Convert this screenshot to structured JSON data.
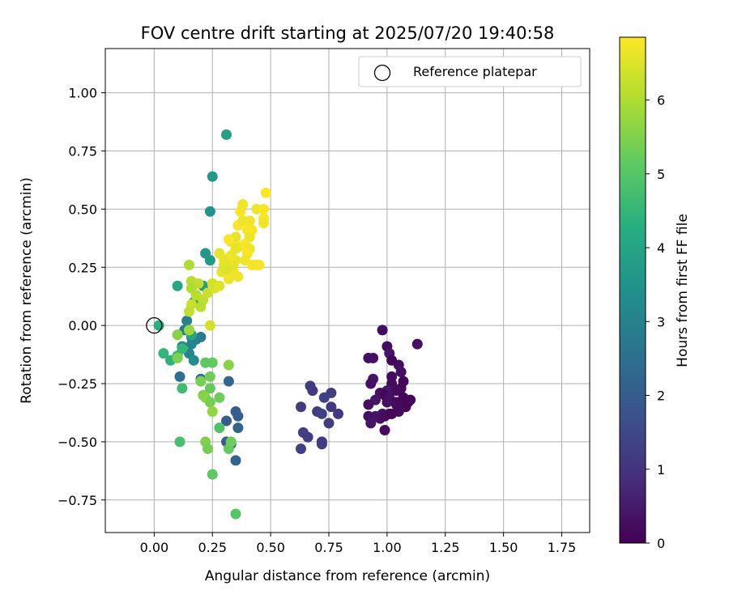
{
  "chart_data": {
    "type": "scatter",
    "title": "FOV centre drift starting at 2025/07/20 19:40:58",
    "xlabel": "Angular distance from reference (arcmin)",
    "ylabel": "Rotation from reference (arcmin)",
    "xlim": [
      -0.21,
      1.87
    ],
    "ylim": [
      -0.89,
      1.19
    ],
    "xticks": [
      0.0,
      0.25,
      0.5,
      0.75,
      1.0,
      1.25,
      1.5,
      1.75
    ],
    "xtick_labels": [
      "0.00",
      "0.25",
      "0.50",
      "0.75",
      "1.00",
      "1.25",
      "1.50",
      "1.75"
    ],
    "yticks": [
      -0.75,
      -0.5,
      -0.25,
      0.0,
      0.25,
      0.5,
      0.75,
      1.0
    ],
    "ytick_labels": [
      "−0.75",
      "−0.50",
      "−0.25",
      "0.00",
      "0.25",
      "0.50",
      "0.75",
      "1.00"
    ],
    "grid": true,
    "legend": {
      "location": "top-right",
      "entries": [
        "Reference platepar"
      ]
    },
    "reference_point": {
      "x": 0.0,
      "y": 0.0,
      "label": "Reference platepar"
    },
    "colorbar": {
      "label": "Hours from first FF file",
      "colormap": "viridis",
      "range": [
        0,
        6.85
      ],
      "ticks": [
        0,
        1,
        2,
        3,
        4,
        5,
        6
      ],
      "tick_labels": [
        "0",
        "1",
        "2",
        "3",
        "4",
        "5",
        "6"
      ]
    },
    "points": [
      {
        "x": 0.98,
        "y": -0.02,
        "c": 0.2
      },
      {
        "x": 1.13,
        "y": -0.08,
        "c": 0.3
      },
      {
        "x": 1.0,
        "y": -0.09,
        "c": 0.2
      },
      {
        "x": 0.94,
        "y": -0.14,
        "c": 0.3
      },
      {
        "x": 1.01,
        "y": -0.12,
        "c": 0.4
      },
      {
        "x": 1.05,
        "y": -0.17,
        "c": 0.2
      },
      {
        "x": 0.92,
        "y": -0.14,
        "c": 0.3
      },
      {
        "x": 1.02,
        "y": -0.15,
        "c": 0.1
      },
      {
        "x": 1.06,
        "y": -0.2,
        "c": 0.3
      },
      {
        "x": 1.02,
        "y": -0.22,
        "c": 0.2
      },
      {
        "x": 0.94,
        "y": -0.23,
        "c": 0.4
      },
      {
        "x": 1.07,
        "y": -0.24,
        "c": 0.1
      },
      {
        "x": 0.93,
        "y": -0.25,
        "c": 0.3
      },
      {
        "x": 1.02,
        "y": -0.25,
        "c": 0.2
      },
      {
        "x": 1.06,
        "y": -0.27,
        "c": 0.1
      },
      {
        "x": 1.0,
        "y": -0.28,
        "c": 0.4
      },
      {
        "x": 1.04,
        "y": -0.28,
        "c": 0.2
      },
      {
        "x": 0.97,
        "y": -0.29,
        "c": 0.3
      },
      {
        "x": 0.99,
        "y": -0.3,
        "c": 0.1
      },
      {
        "x": 1.01,
        "y": -0.31,
        "c": 0.3
      },
      {
        "x": 1.07,
        "y": -0.31,
        "c": 0.1
      },
      {
        "x": 1.1,
        "y": -0.32,
        "c": 0.1
      },
      {
        "x": 0.95,
        "y": -0.32,
        "c": 0.4
      },
      {
        "x": 1.04,
        "y": -0.33,
        "c": 0.2
      },
      {
        "x": 1.06,
        "y": -0.33,
        "c": 0.1
      },
      {
        "x": 1.09,
        "y": -0.33,
        "c": 0.1
      },
      {
        "x": 1.0,
        "y": -0.33,
        "c": 0.3
      },
      {
        "x": 0.92,
        "y": -0.34,
        "c": 0.3
      },
      {
        "x": 1.04,
        "y": -0.34,
        "c": 0.2
      },
      {
        "x": 1.08,
        "y": -0.35,
        "c": 0.1
      },
      {
        "x": 1.05,
        "y": -0.37,
        "c": 0.2
      },
      {
        "x": 0.98,
        "y": -0.38,
        "c": 0.3
      },
      {
        "x": 1.01,
        "y": -0.38,
        "c": 0.2
      },
      {
        "x": 0.95,
        "y": -0.39,
        "c": 0.4
      },
      {
        "x": 0.97,
        "y": -0.4,
        "c": 0.3
      },
      {
        "x": 0.93,
        "y": -0.4,
        "c": 0.4
      },
      {
        "x": 0.92,
        "y": -0.39,
        "c": 0.3
      },
      {
        "x": 0.99,
        "y": -0.39,
        "c": 0.2
      },
      {
        "x": 0.93,
        "y": -0.42,
        "c": 0.4
      },
      {
        "x": 0.99,
        "y": -0.45,
        "c": 0.2
      },
      {
        "x": 1.02,
        "y": -0.38,
        "c": 0.1
      },
      {
        "x": 0.67,
        "y": -0.26,
        "c": 1.2
      },
      {
        "x": 0.68,
        "y": -0.28,
        "c": 1.1
      },
      {
        "x": 0.76,
        "y": -0.29,
        "c": 1.2
      },
      {
        "x": 0.73,
        "y": -0.31,
        "c": 1.3
      },
      {
        "x": 0.63,
        "y": -0.35,
        "c": 1.2
      },
      {
        "x": 0.76,
        "y": -0.35,
        "c": 1.1
      },
      {
        "x": 0.7,
        "y": -0.37,
        "c": 1.2
      },
      {
        "x": 0.72,
        "y": -0.38,
        "c": 1.3
      },
      {
        "x": 0.79,
        "y": -0.38,
        "c": 1.1
      },
      {
        "x": 0.75,
        "y": -0.42,
        "c": 1.2
      },
      {
        "x": 0.64,
        "y": -0.46,
        "c": 1.3
      },
      {
        "x": 0.66,
        "y": -0.48,
        "c": 1.2
      },
      {
        "x": 0.72,
        "y": -0.5,
        "c": 1.1
      },
      {
        "x": 0.72,
        "y": -0.51,
        "c": 1.2
      },
      {
        "x": 0.63,
        "y": -0.53,
        "c": 1.3
      },
      {
        "x": 0.35,
        "y": -0.37,
        "c": 2.0
      },
      {
        "x": 0.36,
        "y": -0.39,
        "c": 2.1
      },
      {
        "x": 0.31,
        "y": -0.41,
        "c": 2.0
      },
      {
        "x": 0.36,
        "y": -0.44,
        "c": 2.2
      },
      {
        "x": 0.31,
        "y": -0.5,
        "c": 2.1
      },
      {
        "x": 0.33,
        "y": -0.51,
        "c": 2.0
      },
      {
        "x": 0.35,
        "y": -0.58,
        "c": 2.2
      },
      {
        "x": 0.32,
        "y": -0.24,
        "c": 2.3
      },
      {
        "x": 0.11,
        "y": -0.22,
        "c": 2.5
      },
      {
        "x": 0.2,
        "y": -0.23,
        "c": 2.6
      },
      {
        "x": 0.2,
        "y": -0.05,
        "c": 2.8
      },
      {
        "x": 0.15,
        "y": -0.02,
        "c": 2.9
      },
      {
        "x": 0.14,
        "y": 0.02,
        "c": 3.0
      },
      {
        "x": 0.16,
        "y": -0.05,
        "c": 2.9
      },
      {
        "x": 0.16,
        "y": -0.08,
        "c": 3.1
      },
      {
        "x": 0.18,
        "y": -0.06,
        "c": 3.0
      },
      {
        "x": 0.12,
        "y": -0.09,
        "c": 3.2
      },
      {
        "x": 0.15,
        "y": -0.12,
        "c": 3.1
      },
      {
        "x": 0.17,
        "y": -0.15,
        "c": 3.3
      },
      {
        "x": 0.13,
        "y": -0.02,
        "c": 2.9
      },
      {
        "x": 0.31,
        "y": 0.82,
        "c": 3.8
      },
      {
        "x": 0.25,
        "y": 0.64,
        "c": 3.7
      },
      {
        "x": 0.24,
        "y": 0.49,
        "c": 3.5
      },
      {
        "x": 0.22,
        "y": 0.31,
        "c": 3.6
      },
      {
        "x": 0.24,
        "y": 0.28,
        "c": 3.7
      },
      {
        "x": 0.21,
        "y": 0.17,
        "c": 3.8
      },
      {
        "x": 0.18,
        "y": 0.13,
        "c": 3.9
      },
      {
        "x": 0.17,
        "y": 0.1,
        "c": 4.0
      },
      {
        "x": 0.1,
        "y": 0.17,
        "c": 4.1
      },
      {
        "x": 0.16,
        "y": -0.04,
        "c": 4.0
      },
      {
        "x": 0.02,
        "y": 0.0,
        "c": 4.3
      },
      {
        "x": 0.04,
        "y": -0.12,
        "c": 4.5
      },
      {
        "x": 0.07,
        "y": -0.15,
        "c": 4.4
      },
      {
        "x": 0.1,
        "y": -0.13,
        "c": 4.6
      },
      {
        "x": 0.12,
        "y": -0.1,
        "c": 4.5
      },
      {
        "x": 0.12,
        "y": -0.27,
        "c": 4.7
      },
      {
        "x": 0.11,
        "y": -0.5,
        "c": 4.8
      },
      {
        "x": 0.35,
        "y": -0.81,
        "c": 5.0
      },
      {
        "x": 0.25,
        "y": -0.64,
        "c": 5.1
      },
      {
        "x": 0.28,
        "y": -0.44,
        "c": 4.9
      },
      {
        "x": 0.32,
        "y": -0.53,
        "c": 5.2
      },
      {
        "x": 0.33,
        "y": -0.5,
        "c": 5.3
      },
      {
        "x": 0.22,
        "y": -0.5,
        "c": 5.5
      },
      {
        "x": 0.23,
        "y": -0.53,
        "c": 5.4
      },
      {
        "x": 0.25,
        "y": -0.16,
        "c": 5.2
      },
      {
        "x": 0.22,
        "y": -0.16,
        "c": 5.1
      },
      {
        "x": 0.24,
        "y": -0.22,
        "c": 5.3
      },
      {
        "x": 0.2,
        "y": -0.24,
        "c": 5.4
      },
      {
        "x": 0.24,
        "y": -0.27,
        "c": 5.2
      },
      {
        "x": 0.21,
        "y": -0.3,
        "c": 5.5
      },
      {
        "x": 0.28,
        "y": -0.31,
        "c": 5.3
      },
      {
        "x": 0.22,
        "y": -0.31,
        "c": 5.6
      },
      {
        "x": 0.24,
        "y": -0.33,
        "c": 5.4
      },
      {
        "x": 0.25,
        "y": -0.37,
        "c": 5.7
      },
      {
        "x": 0.32,
        "y": -0.17,
        "c": 5.6
      },
      {
        "x": 0.1,
        "y": -0.04,
        "c": 5.6
      },
      {
        "x": 0.1,
        "y": -0.14,
        "c": 5.5
      },
      {
        "x": 0.15,
        "y": -0.02,
        "c": 5.8
      },
      {
        "x": 0.15,
        "y": 0.26,
        "c": 6.0
      },
      {
        "x": 0.16,
        "y": 0.19,
        "c": 6.1
      },
      {
        "x": 0.19,
        "y": 0.18,
        "c": 6.2
      },
      {
        "x": 0.16,
        "y": 0.16,
        "c": 6.0
      },
      {
        "x": 0.18,
        "y": 0.13,
        "c": 6.1
      },
      {
        "x": 0.21,
        "y": 0.11,
        "c": 6.2
      },
      {
        "x": 0.16,
        "y": 0.09,
        "c": 6.3
      },
      {
        "x": 0.2,
        "y": 0.08,
        "c": 6.1
      },
      {
        "x": 0.15,
        "y": 0.06,
        "c": 6.2
      },
      {
        "x": 0.23,
        "y": 0.14,
        "c": 6.3
      },
      {
        "x": 0.24,
        "y": 0.0,
        "c": 6.4
      },
      {
        "x": 0.26,
        "y": 0.16,
        "c": 6.5
      },
      {
        "x": 0.25,
        "y": 0.18,
        "c": 6.4
      },
      {
        "x": 0.28,
        "y": 0.17,
        "c": 6.5
      },
      {
        "x": 0.29,
        "y": 0.23,
        "c": 6.6
      },
      {
        "x": 0.3,
        "y": 0.26,
        "c": 6.5
      },
      {
        "x": 0.28,
        "y": 0.31,
        "c": 6.6
      },
      {
        "x": 0.32,
        "y": 0.2,
        "c": 6.7
      },
      {
        "x": 0.33,
        "y": 0.25,
        "c": 6.6
      },
      {
        "x": 0.34,
        "y": 0.23,
        "c": 6.7
      },
      {
        "x": 0.35,
        "y": 0.28,
        "c": 6.6
      },
      {
        "x": 0.36,
        "y": 0.21,
        "c": 6.7
      },
      {
        "x": 0.32,
        "y": 0.29,
        "c": 6.8
      },
      {
        "x": 0.33,
        "y": 0.36,
        "c": 6.7
      },
      {
        "x": 0.35,
        "y": 0.38,
        "c": 6.6
      },
      {
        "x": 0.32,
        "y": 0.37,
        "c": 6.8
      },
      {
        "x": 0.37,
        "y": 0.34,
        "c": 6.7
      },
      {
        "x": 0.36,
        "y": 0.43,
        "c": 6.8
      },
      {
        "x": 0.38,
        "y": 0.45,
        "c": 6.7
      },
      {
        "x": 0.37,
        "y": 0.49,
        "c": 6.8
      },
      {
        "x": 0.38,
        "y": 0.52,
        "c": 6.7
      },
      {
        "x": 0.4,
        "y": 0.41,
        "c": 6.8
      },
      {
        "x": 0.41,
        "y": 0.45,
        "c": 6.7
      },
      {
        "x": 0.42,
        "y": 0.41,
        "c": 6.8
      },
      {
        "x": 0.41,
        "y": 0.38,
        "c": 6.7
      },
      {
        "x": 0.39,
        "y": 0.35,
        "c": 6.8
      },
      {
        "x": 0.41,
        "y": 0.33,
        "c": 6.7
      },
      {
        "x": 0.4,
        "y": 0.31,
        "c": 6.8
      },
      {
        "x": 0.39,
        "y": 0.28,
        "c": 6.7
      },
      {
        "x": 0.42,
        "y": 0.26,
        "c": 6.8
      },
      {
        "x": 0.44,
        "y": 0.26,
        "c": 6.7
      },
      {
        "x": 0.45,
        "y": 0.26,
        "c": 6.8
      },
      {
        "x": 0.44,
        "y": 0.5,
        "c": 6.7
      },
      {
        "x": 0.47,
        "y": 0.46,
        "c": 6.8
      },
      {
        "x": 0.47,
        "y": 0.44,
        "c": 6.7
      },
      {
        "x": 0.47,
        "y": 0.5,
        "c": 6.8
      },
      {
        "x": 0.48,
        "y": 0.57,
        "c": 6.9
      },
      {
        "x": 0.34,
        "y": 0.26,
        "c": 6.6
      },
      {
        "x": 0.31,
        "y": 0.24,
        "c": 6.5
      },
      {
        "x": 0.3,
        "y": 0.28,
        "c": 6.6
      },
      {
        "x": 0.33,
        "y": 0.3,
        "c": 6.7
      },
      {
        "x": 0.35,
        "y": 0.33,
        "c": 6.6
      }
    ]
  }
}
